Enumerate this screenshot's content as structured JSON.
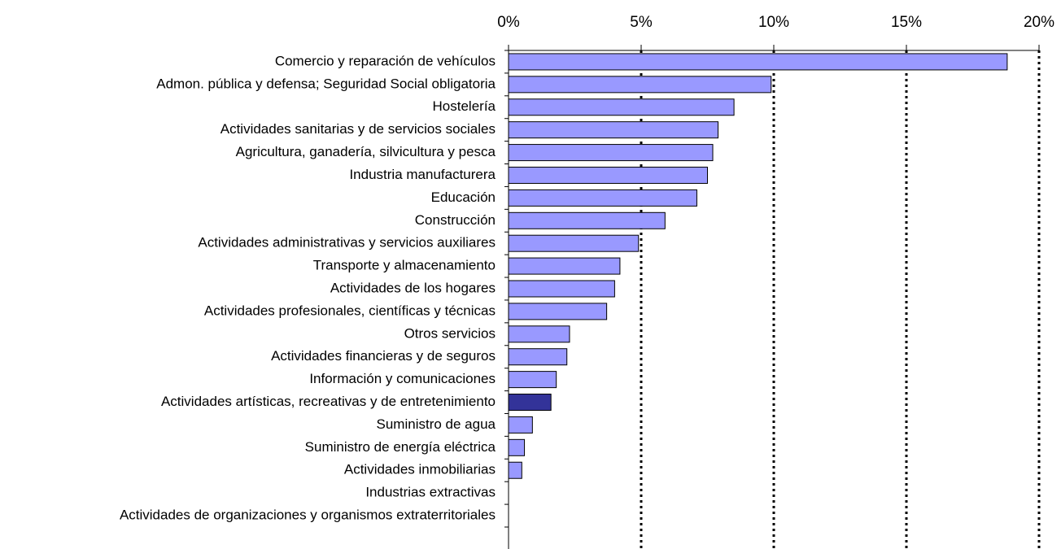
{
  "chart_data": {
    "type": "barh",
    "categories": [
      "Comercio y reparación de vehículos",
      "Admon. pública y defensa; Seguridad Social obligatoria",
      "Hostelería",
      "Actividades sanitarias y de servicios sociales",
      "Agricultura, ganadería, silvicultura y pesca",
      "Industria manufacturera",
      "Educación",
      "Construcción",
      "Actividades administrativas y servicios auxiliares",
      "Transporte y almacenamiento",
      "Actividades de los hogares",
      "Actividades profesionales, científicas y técnicas",
      "Otros servicios",
      "Actividades financieras y de seguros",
      "Información y comunicaciones",
      "Actividades artísticas, recreativas y de entretenimiento",
      "Suministro de agua",
      "Suministro de energía eléctrica",
      "Actividades inmobiliarias",
      "Industrias extractivas",
      "Actividades de organizaciones y organismos extraterritoriales"
    ],
    "values": [
      18.8,
      9.9,
      8.5,
      7.9,
      7.7,
      7.5,
      7.1,
      5.9,
      4.9,
      4.2,
      4.0,
      3.7,
      2.3,
      2.2,
      1.8,
      1.6,
      0.9,
      0.6,
      0.5,
      0,
      0
    ],
    "colors": [
      "#9999ff",
      "#9999ff",
      "#9999ff",
      "#9999ff",
      "#9999ff",
      "#9999ff",
      "#9999ff",
      "#9999ff",
      "#9999ff",
      "#9999ff",
      "#9999ff",
      "#9999ff",
      "#9999ff",
      "#9999ff",
      "#9999ff",
      "#333399",
      "#9999ff",
      "#9999ff",
      "#9999ff",
      "#9999ff",
      "#9999ff"
    ],
    "xlim": [
      0,
      20
    ],
    "xticks": [
      {
        "value": 0,
        "label": "0%"
      },
      {
        "value": 5,
        "label": "5%"
      },
      {
        "value": 10,
        "label": "10%"
      },
      {
        "value": 15,
        "label": "15%"
      },
      {
        "value": 20,
        "label": "20%"
      }
    ],
    "grid": true
  }
}
